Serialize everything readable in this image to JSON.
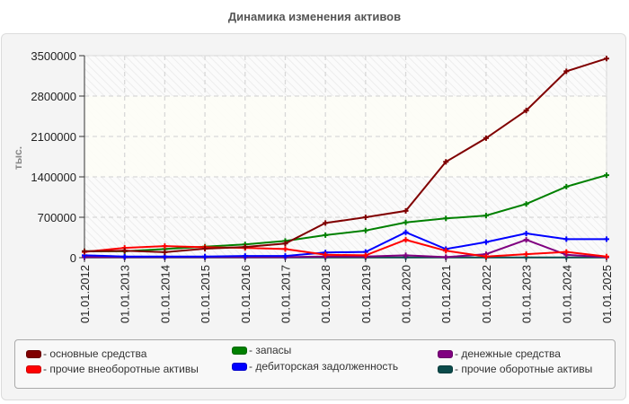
{
  "chart_data": {
    "type": "line",
    "title": "Динамика изменения активов",
    "xlabel": "",
    "ylabel": "тыс.",
    "ylim": [
      0,
      3500000
    ],
    "yticks": [
      0,
      700000,
      1400000,
      2100000,
      2800000,
      3500000
    ],
    "ytick_labels": [
      "0",
      "700000",
      "1400000",
      "2100000",
      "2800000",
      "3500000"
    ],
    "grid": true,
    "legend_position": "bottom",
    "categories": [
      "01.01.2012",
      "01.01.2013",
      "01.01.2014",
      "01.01.2015",
      "01.01.2016",
      "01.01.2017",
      "01.01.2018",
      "01.01.2019",
      "01.01.2020",
      "01.01.2021",
      "01.01.2022",
      "01.01.2023",
      "01.01.2024",
      "01.01.2025"
    ],
    "series": [
      {
        "name": "основные средства",
        "color": "#800000",
        "values": [
          110000,
          120000,
          95000,
          155000,
          185000,
          245000,
          600000,
          700000,
          810000,
          1660000,
          2070000,
          2550000,
          3230000,
          3450000
        ]
      },
      {
        "name": "прочие внеоборотные активы",
        "color": "#ff0000",
        "values": [
          100000,
          170000,
          200000,
          180000,
          170000,
          150000,
          50000,
          40000,
          310000,
          120000,
          20000,
          60000,
          100000,
          20000
        ]
      },
      {
        "name": "запасы",
        "color": "#008000",
        "values": [
          110000,
          110000,
          150000,
          190000,
          230000,
          290000,
          390000,
          470000,
          610000,
          680000,
          730000,
          930000,
          1230000,
          1430000
        ]
      },
      {
        "name": "дебиторская задолженность",
        "color": "#0000ff",
        "values": [
          40000,
          20000,
          20000,
          20000,
          30000,
          30000,
          90000,
          100000,
          440000,
          150000,
          270000,
          420000,
          320000,
          320000
        ]
      },
      {
        "name": "денежные средства",
        "color": "#800080",
        "values": [
          10000,
          10000,
          10000,
          10000,
          10000,
          10000,
          20000,
          20000,
          40000,
          10000,
          60000,
          310000,
          50000,
          10000
        ]
      },
      {
        "name": "прочие оборотные активы",
        "color": "#0b4a4a",
        "values": [
          5000,
          5000,
          5000,
          5000,
          5000,
          5000,
          5000,
          5000,
          5000,
          5000,
          5000,
          5000,
          5000,
          5000
        ]
      }
    ]
  },
  "header": {
    "title": "Динамика изменения активов"
  },
  "axis": {
    "y_label": "тыс."
  },
  "legend": {
    "items": [
      {
        "label": "- основные средства",
        "color": "#800000"
      },
      {
        "label": "- прочие внеоборотные активы",
        "color": "#ff0000"
      },
      {
        "label": "- запасы",
        "color": "#008000"
      },
      {
        "label": "- дебиторская задолженность",
        "color": "#0000ff"
      },
      {
        "label": "- денежные средства",
        "color": "#800080"
      },
      {
        "label": "- прочие оборотные активы",
        "color": "#0b4a4a"
      }
    ]
  }
}
